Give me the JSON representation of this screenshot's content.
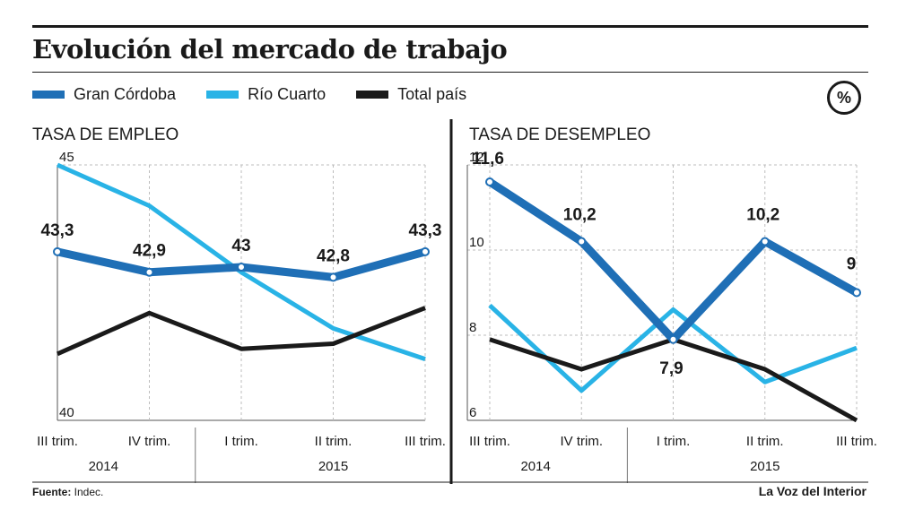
{
  "title": "Evolución del mercado de trabajo",
  "unit": "%",
  "legend": [
    {
      "name": "Gran Córdoba",
      "color": "#1f6fb6"
    },
    {
      "name": "Río Cuarto",
      "color": "#29b3e6"
    },
    {
      "name": "Total país",
      "color": "#1a1a1a"
    }
  ],
  "source_label": "Fuente:",
  "source_value": " Indec.",
  "publisher": "La Voz del Interior",
  "chart_data": [
    {
      "type": "line",
      "title": "TASA DE EMPLEO",
      "categories": [
        "III trim.",
        "IV trim.",
        "I trim.",
        "II trim.",
        "III trim."
      ],
      "year_groups": [
        {
          "label": "2014",
          "span": 2
        },
        {
          "label": "2015",
          "span": 3
        }
      ],
      "ylim": [
        40,
        45
      ],
      "yticks": [
        40,
        45
      ],
      "grid": true,
      "series": [
        {
          "name": "Gran Córdoba",
          "color": "#1f6fb6",
          "values": [
            43.3,
            42.9,
            43.0,
            42.8,
            43.3
          ],
          "labels": [
            "43,3",
            "42,9",
            "43",
            "42,8",
            "43,3"
          ],
          "markers": true
        },
        {
          "name": "Río Cuarto",
          "color": "#29b3e6",
          "values": [
            45.0,
            44.2,
            42.9,
            41.8,
            41.2
          ]
        },
        {
          "name": "Total país",
          "color": "#1a1a1a",
          "values": [
            41.3,
            42.1,
            41.4,
            41.5,
            42.2
          ]
        }
      ]
    },
    {
      "type": "line",
      "title": "TASA DE DESEMPLEO",
      "categories": [
        "III trim.",
        "IV trim.",
        "I trim.",
        "II trim.",
        "III trim."
      ],
      "year_groups": [
        {
          "label": "2014",
          "span": 2
        },
        {
          "label": "2015",
          "span": 3
        }
      ],
      "ylim": [
        6,
        12
      ],
      "yticks": [
        6,
        8,
        10,
        12
      ],
      "grid": true,
      "series": [
        {
          "name": "Gran Córdoba",
          "color": "#1f6fb6",
          "values": [
            11.6,
            10.2,
            7.9,
            10.2,
            9.0
          ],
          "labels": [
            "11,6",
            "10,2",
            "7,9",
            "10,2",
            "9"
          ],
          "markers": true
        },
        {
          "name": "Río Cuarto",
          "color": "#29b3e6",
          "values": [
            8.7,
            6.7,
            8.6,
            6.9,
            7.7
          ]
        },
        {
          "name": "Total país",
          "color": "#1a1a1a",
          "values": [
            7.9,
            7.2,
            7.9,
            7.2,
            6.0
          ]
        }
      ]
    }
  ]
}
